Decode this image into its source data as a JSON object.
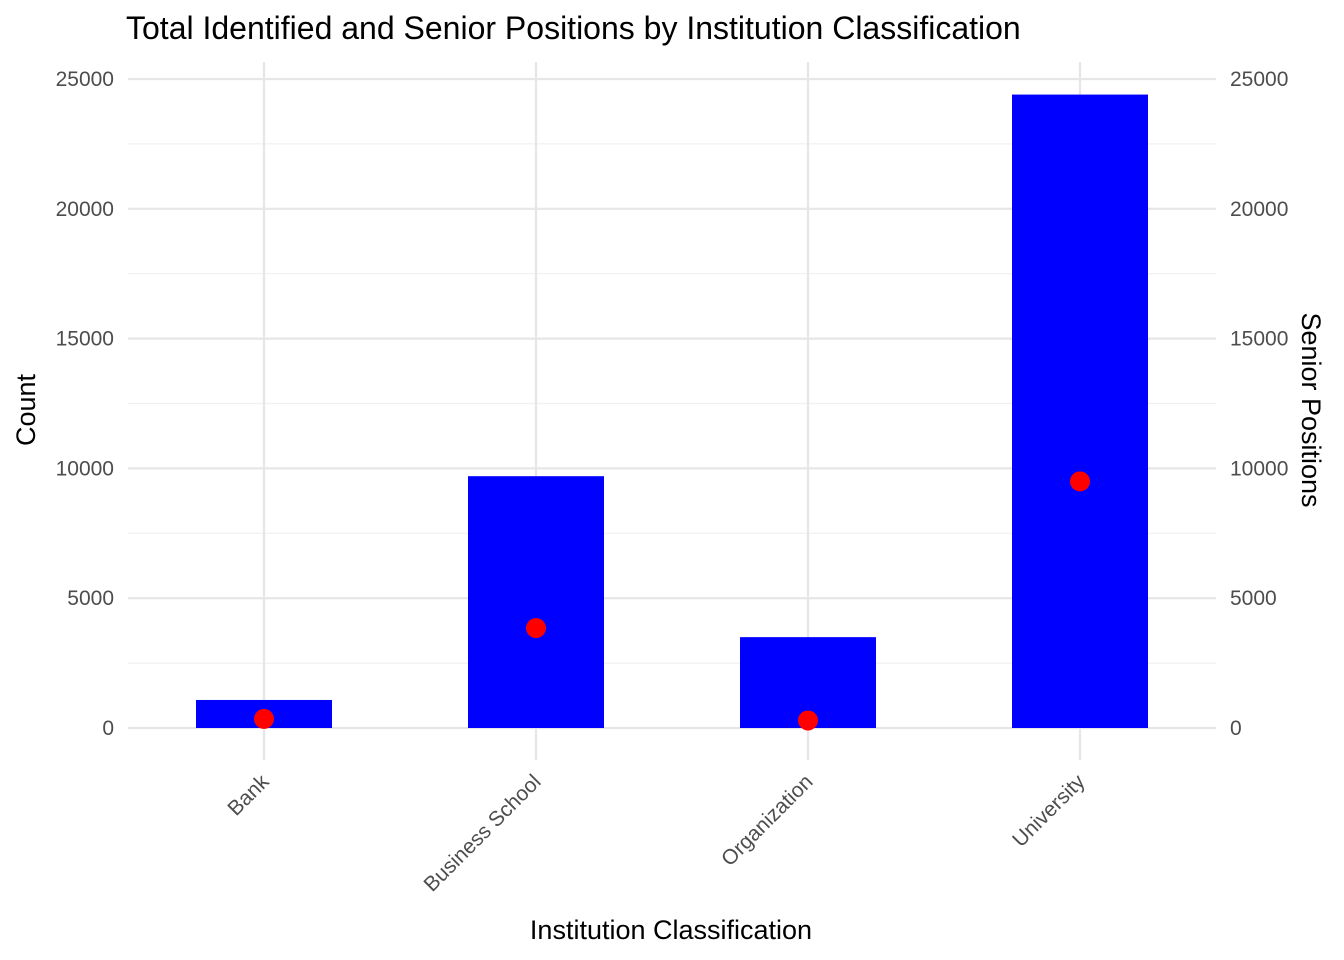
{
  "chart_data": {
    "type": "bar",
    "title": "Total Identified and Senior Positions by Institution Classification",
    "xlabel": "Institution Classification",
    "ylabel": "Count",
    "y2label": "Senior Positions",
    "categories": [
      "Bank",
      "Business School",
      "Organization",
      "University"
    ],
    "series": [
      {
        "kind": "bar",
        "values": [
          1080,
          9700,
          3500,
          24400
        ],
        "color": "#0000ff"
      },
      {
        "kind": "point",
        "values": [
          350,
          3850,
          290,
          9500
        ],
        "color": "#ff0000"
      }
    ],
    "ylim": [
      0,
      25000
    ],
    "yticks": [
      "0",
      "5000",
      "10000",
      "15000",
      "20000",
      "25000"
    ],
    "y2ticks": [
      "0",
      "5000",
      "10000",
      "15000",
      "20000",
      "25000"
    ],
    "grid": true,
    "legend": "none"
  }
}
